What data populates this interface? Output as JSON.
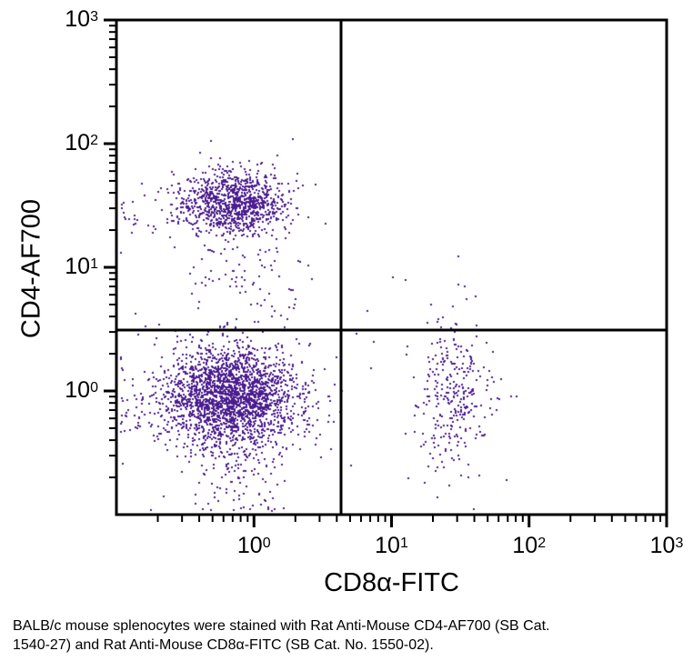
{
  "caption": "BALB/c mouse splenocytes were stained with Rat Anti-Mouse CD4-AF700 (SB Cat. 1540-27) and Rat Anti-Mouse CD8α-FITC (SB Cat. No. 1550-02).",
  "chart_data": {
    "type": "scatter",
    "subtype": "flow-cytometry-dot-plot",
    "title": "",
    "xlabel": "CD8α-FITC",
    "ylabel": "CD4-AF700",
    "x_scale": "log",
    "y_scale": "log",
    "x_log_range": [
      -1,
      3
    ],
    "y_log_range": [
      -1,
      3
    ],
    "x_major_exponents": [
      0,
      1,
      2,
      3
    ],
    "y_major_exponents": [
      0,
      1,
      2,
      3
    ],
    "grid": false,
    "legend": "none",
    "point_color": "#4b1d8f",
    "line_color": "#000000",
    "background_color": "#ffffff",
    "quadrant_gate": {
      "x_log": 0.633,
      "y_log": 0.493
    },
    "populations": [
      {
        "name": "CD4-positive (upper-left)",
        "count": 1000,
        "cx_log": -0.14,
        "cy_log": 1.52,
        "sx_log": 0.19,
        "sy_log": 0.13
      },
      {
        "name": "CD4-positive left tail",
        "count": 60,
        "cx_log": -0.55,
        "cy_log": 1.45,
        "sx_log": 0.28,
        "sy_log": 0.12
      },
      {
        "name": "CD4-positive lower tail",
        "count": 70,
        "cx_log": -0.12,
        "cy_log": 1.05,
        "sx_log": 0.17,
        "sy_log": 0.28
      },
      {
        "name": "CD4-positive right sparse",
        "count": 18,
        "cx_log": 0.25,
        "cy_log": 0.85,
        "sx_log": 0.22,
        "sy_log": 0.18
      },
      {
        "name": "double-negative (lower-left)",
        "count": 2200,
        "cx_log": -0.18,
        "cy_log": -0.05,
        "sx_log": 0.24,
        "sy_log": 0.2
      },
      {
        "name": "double-negative bottom tail",
        "count": 130,
        "cx_log": -0.13,
        "cy_log": -0.6,
        "sx_log": 0.15,
        "sy_log": 0.25
      },
      {
        "name": "double-negative left sparse",
        "count": 80,
        "cx_log": -0.6,
        "cy_log": -0.05,
        "sx_log": 0.25,
        "sy_log": 0.3
      },
      {
        "name": "double-negative right sparse",
        "count": 50,
        "cx_log": 0.35,
        "cy_log": -0.05,
        "sx_log": 0.18,
        "sy_log": 0.25
      },
      {
        "name": "CD8-positive (lower-right)",
        "count": 300,
        "cx_log": 1.46,
        "cy_log": -0.03,
        "sx_log": 0.13,
        "sy_log": 0.3
      },
      {
        "name": "double-positive sparse (upper-right)",
        "count": 7,
        "cx_log": 1.05,
        "cy_log": 0.7,
        "sx_log": 0.25,
        "sy_log": 0.1
      },
      {
        "name": "background sparse",
        "count": 40,
        "cx_log": 0.2,
        "cy_log": 0.1,
        "sx_log": 0.6,
        "sy_log": 0.5
      }
    ],
    "outlier_points_log": [
      [
        -0.31,
        2.02
      ],
      [
        0.52,
        1.35
      ],
      [
        1.1,
        0.9
      ]
    ]
  }
}
